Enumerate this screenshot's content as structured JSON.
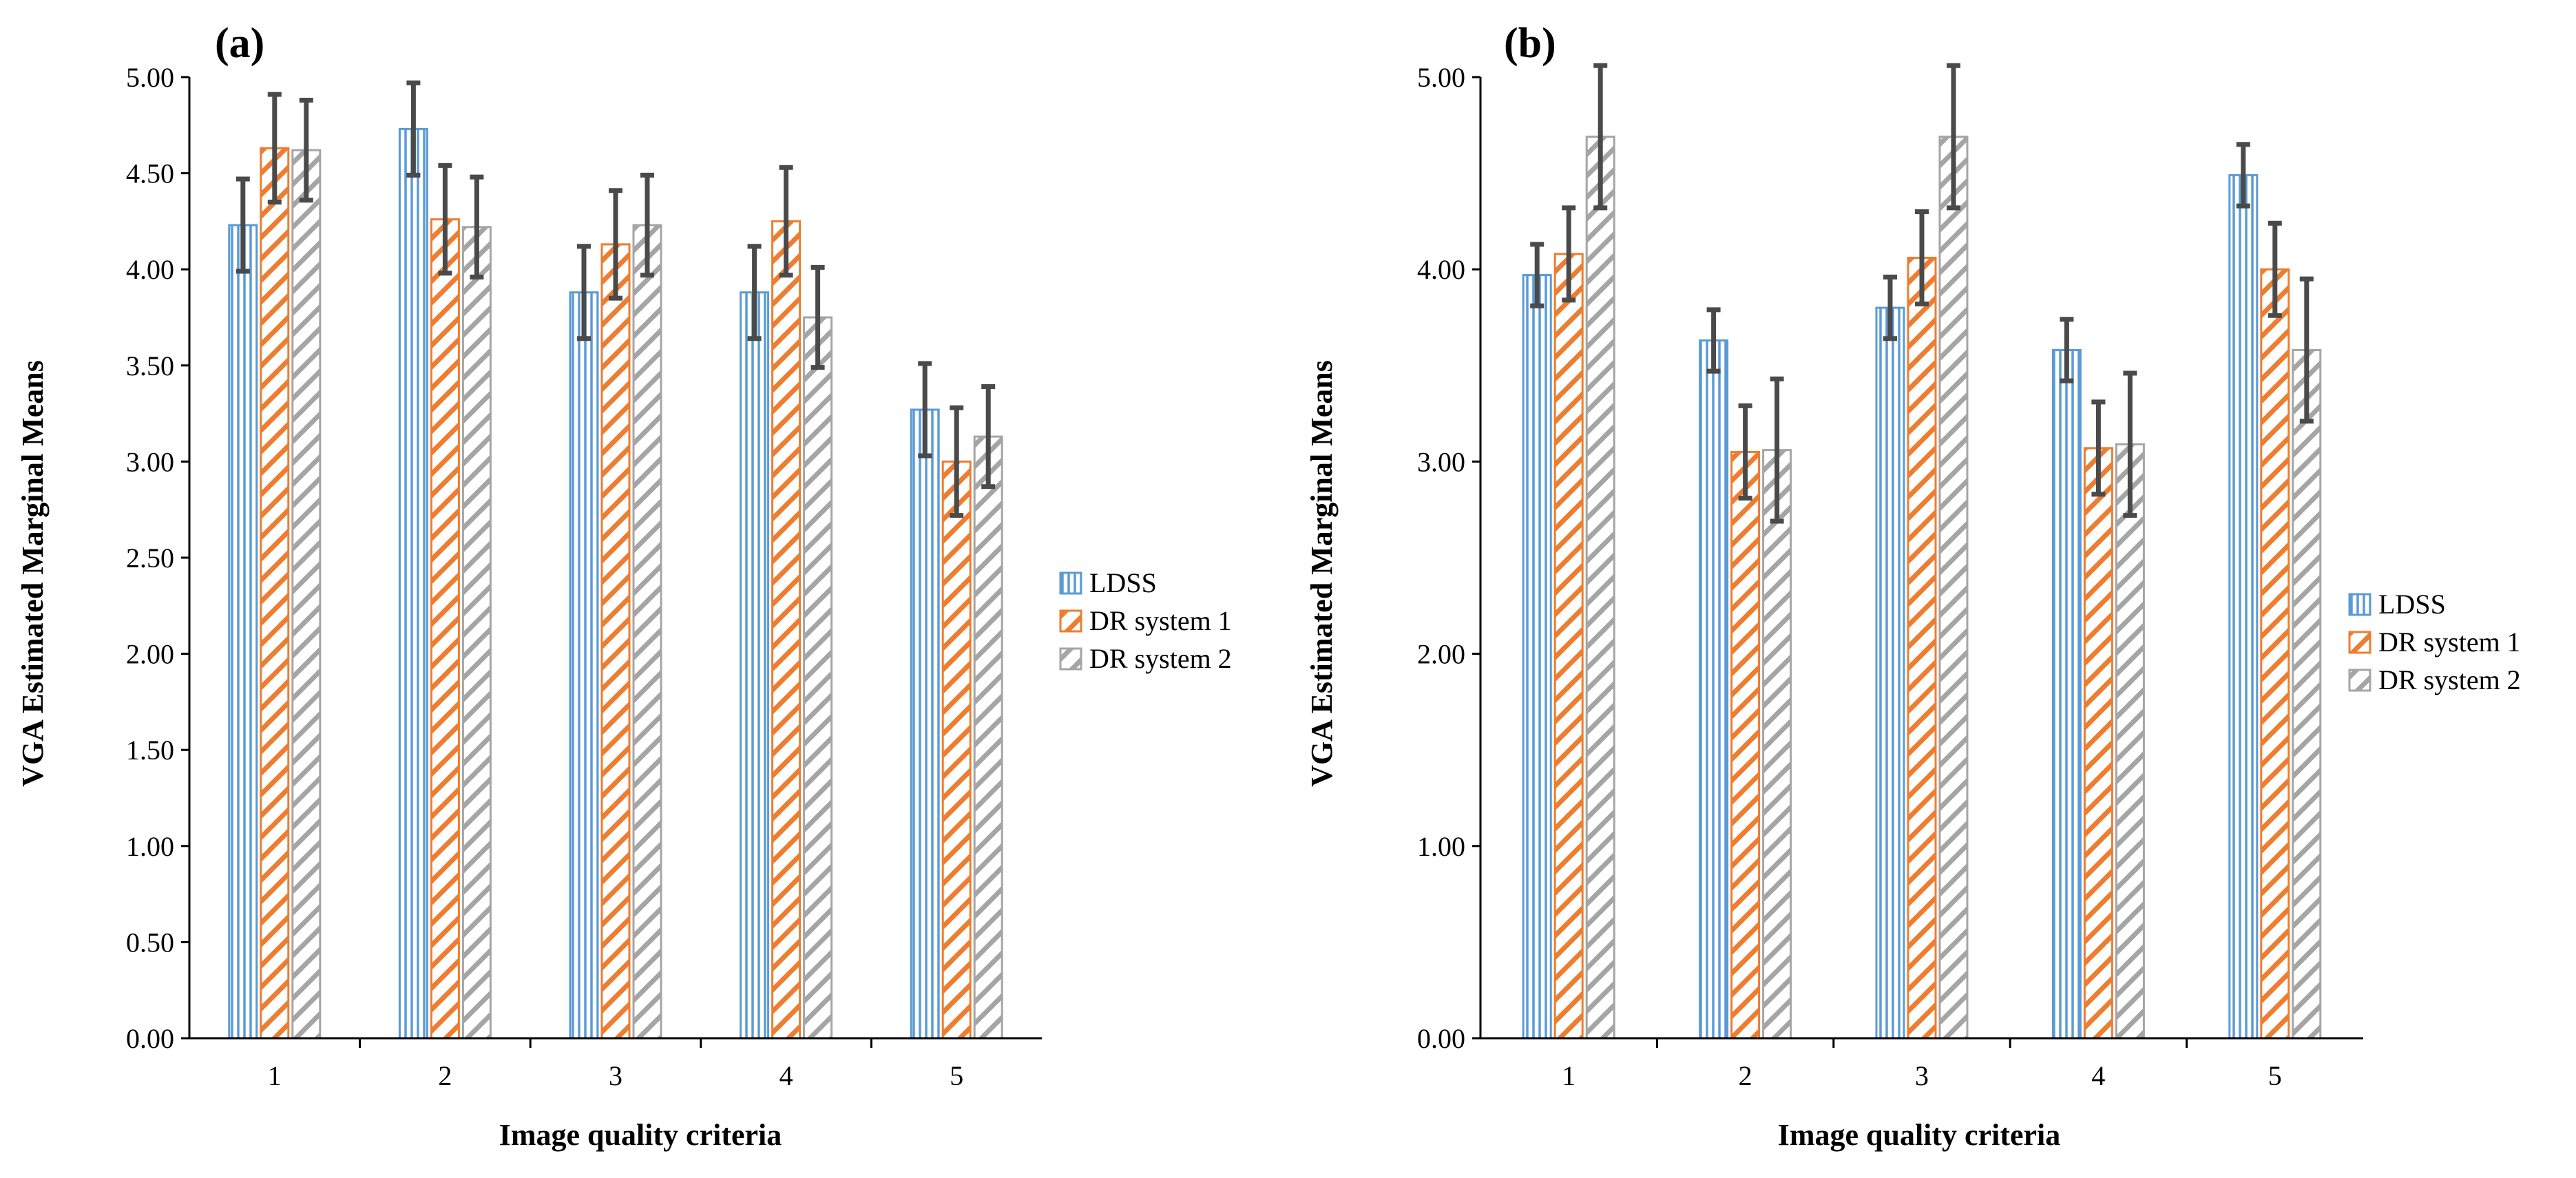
{
  "colors": {
    "LDSS": "#5b9bd5",
    "DR system 1": "#ed7d31",
    "DR system 2": "#a5a5a5",
    "error_bar": "#4a4a4a",
    "axis": "#000000"
  },
  "chart_data": [
    {
      "type": "bar",
      "panel_label": "(a)",
      "title": "",
      "xlabel": "Image quality criteria",
      "ylabel": "VGA Estimated Marginal Means",
      "categories": [
        "1",
        "2",
        "3",
        "4",
        "5"
      ],
      "ylim": [
        0,
        5
      ],
      "ytick_step": 0.5,
      "ytick_labels": [
        "0.00",
        "0.50",
        "1.00",
        "1.50",
        "2.00",
        "2.50",
        "3.00",
        "3.50",
        "4.00",
        "4.50",
        "5.00"
      ],
      "grid": false,
      "legend_position": "right",
      "series": [
        {
          "name": "LDSS",
          "pattern": "vertical",
          "values": [
            4.23,
            4.73,
            3.88,
            3.88,
            3.27
          ],
          "errors": [
            0.24,
            0.24,
            0.24,
            0.24,
            0.24
          ]
        },
        {
          "name": "DR system 1",
          "pattern": "diagonal",
          "values": [
            4.63,
            4.26,
            4.13,
            4.25,
            3.0
          ],
          "errors": [
            0.28,
            0.28,
            0.28,
            0.28,
            0.28
          ]
        },
        {
          "name": "DR system 2",
          "pattern": "diagonal",
          "values": [
            4.62,
            4.22,
            4.23,
            3.75,
            3.13
          ],
          "errors": [
            0.26,
            0.26,
            0.26,
            0.26,
            0.26
          ]
        }
      ]
    },
    {
      "type": "bar",
      "panel_label": "(b)",
      "title": "",
      "xlabel": "Image quality criteria",
      "ylabel": "VGA Estimated Marginal Means",
      "categories": [
        "1",
        "2",
        "3",
        "4",
        "5"
      ],
      "ylim": [
        0,
        5
      ],
      "ytick_step": 1,
      "ytick_labels": [
        "0.00",
        "1.00",
        "2.00",
        "3.00",
        "4.00",
        "5.00"
      ],
      "grid": false,
      "legend_position": "right",
      "series": [
        {
          "name": "LDSS",
          "pattern": "vertical",
          "values": [
            3.97,
            3.63,
            3.8,
            3.58,
            4.49
          ],
          "errors": [
            0.16,
            0.16,
            0.16,
            0.16,
            0.16
          ]
        },
        {
          "name": "DR system 1",
          "pattern": "diagonal",
          "values": [
            4.08,
            3.05,
            4.06,
            3.07,
            4.0
          ],
          "errors": [
            0.24,
            0.24,
            0.24,
            0.24,
            0.24
          ]
        },
        {
          "name": "DR system 2",
          "pattern": "diagonal",
          "values": [
            4.69,
            3.06,
            4.69,
            3.09,
            3.58
          ],
          "errors": [
            0.37,
            0.37,
            0.37,
            0.37,
            0.37
          ]
        }
      ]
    }
  ]
}
